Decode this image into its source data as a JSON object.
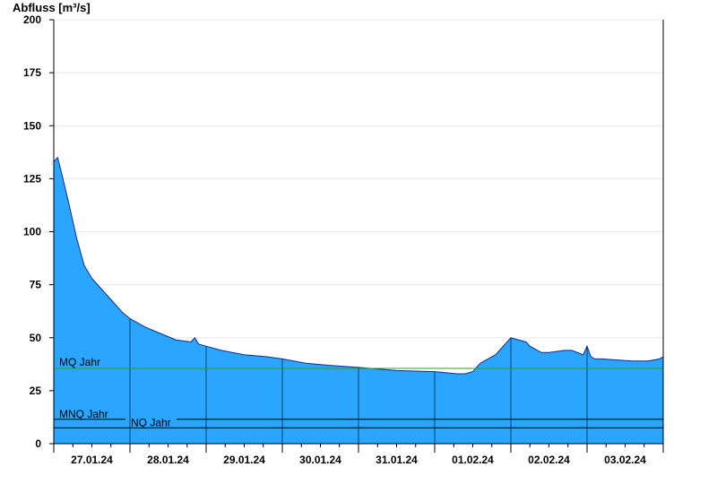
{
  "chart_data": {
    "type": "area",
    "ylabel": "Abfluss [m³/s]",
    "ylim": [
      0,
      200
    ],
    "yticks": [
      0,
      25,
      50,
      75,
      100,
      125,
      150,
      175,
      200
    ],
    "xlim": [
      0,
      8
    ],
    "xlabel_units": "days since 27.01.24 00:00",
    "xtick_labels": [
      "27.01.24",
      "28.01.24",
      "29.01.24",
      "30.01.24",
      "31.01.24",
      "01.02.24",
      "02.02.24",
      "03.02.24"
    ],
    "grid": true,
    "series": [
      {
        "name": "Abfluss",
        "color": "#2aa6ff",
        "x": [
          0.0,
          0.05,
          0.1,
          0.2,
          0.3,
          0.4,
          0.5,
          0.6,
          0.7,
          0.8,
          0.9,
          1.0,
          1.2,
          1.4,
          1.6,
          1.8,
          1.85,
          1.9,
          2.0,
          2.2,
          2.5,
          2.8,
          3.0,
          3.3,
          3.6,
          4.0,
          4.5,
          5.0,
          5.3,
          5.4,
          5.5,
          5.6,
          5.8,
          6.0,
          6.2,
          6.25,
          6.4,
          6.5,
          6.7,
          6.8,
          6.95,
          7.0,
          7.05,
          7.1,
          7.2,
          7.4,
          7.6,
          7.8,
          7.95,
          8.0
        ],
        "y": [
          133,
          135,
          128,
          113,
          97,
          84,
          78,
          74,
          70,
          66,
          62,
          59,
          55,
          52,
          49,
          48,
          50,
          47,
          46,
          44,
          42,
          41,
          40,
          38,
          37,
          36,
          34.5,
          34,
          33,
          33,
          34,
          38,
          42,
          50,
          48,
          46,
          43,
          43,
          44,
          44,
          42,
          46,
          41,
          40,
          40,
          39.5,
          39,
          39,
          40,
          41
        ]
      }
    ],
    "reference_lines": [
      {
        "name": "MQ Jahr",
        "value": 35.5,
        "color": "#2e9e2e"
      },
      {
        "name": "MNQ Jahr",
        "value": 11.5,
        "color": "#000000"
      },
      {
        "name": "NQ Jahr",
        "value": 7.5,
        "color": "#000000"
      }
    ]
  }
}
